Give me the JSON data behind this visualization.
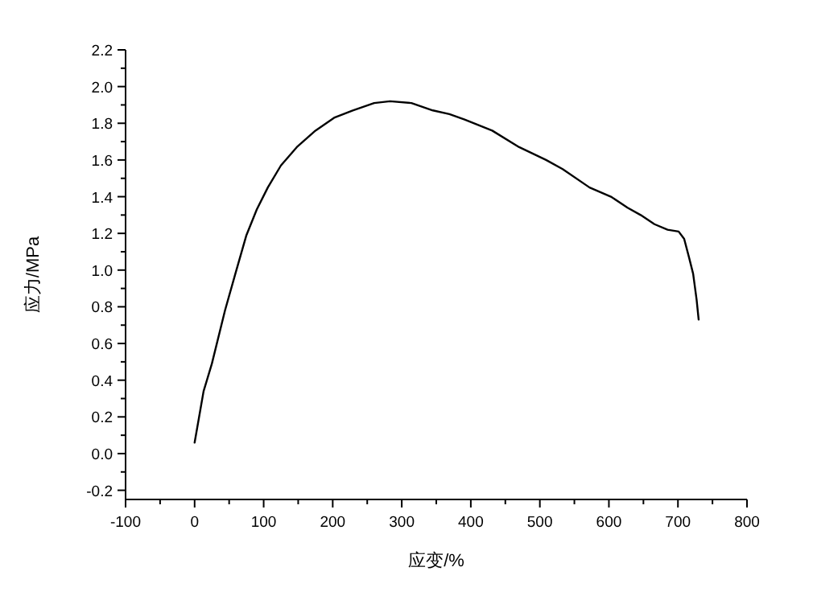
{
  "chart_data": {
    "type": "line",
    "xlabel": "应变/%",
    "ylabel": "应力/MPa",
    "xlim": [
      -100,
      800
    ],
    "ylim": [
      -0.25,
      2.2
    ],
    "xticks": [
      -100,
      {
        "value": -50,
        "label": null
      },
      0,
      {
        "value": 50,
        "label": null
      },
      100,
      {
        "value": 150,
        "label": null
      },
      200,
      {
        "value": 250,
        "label": null
      },
      300,
      {
        "value": 350,
        "label": null
      },
      400,
      {
        "value": 450,
        "label": null
      },
      500,
      {
        "value": 550,
        "label": null
      },
      600,
      {
        "value": 650,
        "label": null
      },
      700,
      {
        "value": 750,
        "label": null
      },
      800
    ],
    "yticks": [
      {
        "value": -0.2,
        "label": "-0.2"
      },
      {
        "value": -0.1,
        "label": null
      },
      {
        "value": 0,
        "label": "0.0"
      },
      {
        "value": 0.1,
        "label": null
      },
      {
        "value": 0.2,
        "label": "0.2"
      },
      {
        "value": 0.3,
        "label": null
      },
      {
        "value": 0.4,
        "label": "0.4"
      },
      {
        "value": 0.5,
        "label": null
      },
      {
        "value": 0.6,
        "label": "0.6"
      },
      {
        "value": 0.7,
        "label": null
      },
      {
        "value": 0.8,
        "label": "0.8"
      },
      {
        "value": 0.9,
        "label": null
      },
      {
        "value": 1,
        "label": "1.0"
      },
      {
        "value": 1.1,
        "label": null
      },
      {
        "value": 1.2,
        "label": "1.2"
      },
      {
        "value": 1.3,
        "label": null
      },
      {
        "value": 1.4,
        "label": "1.4"
      },
      {
        "value": 1.5,
        "label": null
      },
      {
        "value": 1.6,
        "label": "1.6"
      },
      {
        "value": 1.7,
        "label": null
      },
      {
        "value": 1.8,
        "label": "1.8"
      },
      {
        "value": 1.9,
        "label": null
      },
      {
        "value": 2,
        "label": "2.0"
      },
      {
        "value": 2.1,
        "label": null
      },
      {
        "value": 2.2,
        "label": "2.2"
      }
    ],
    "grid": false,
    "x": [
      0,
      13,
      25,
      44,
      59,
      75,
      90,
      106,
      125,
      148,
      175,
      202,
      229,
      260,
      283,
      314,
      345,
      369,
      391,
      431,
      470,
      509,
      533,
      572,
      603,
      627,
      646,
      666,
      685,
      701,
      709,
      716,
      722,
      727,
      730
    ],
    "series": [
      {
        "color": "#000000",
        "values": [
          0.06,
          0.34,
          0.49,
          0.78,
          0.98,
          1.19,
          1.33,
          1.45,
          1.57,
          1.67,
          1.76,
          1.83,
          1.87,
          1.91,
          1.92,
          1.91,
          1.87,
          1.85,
          1.82,
          1.76,
          1.67,
          1.6,
          1.55,
          1.45,
          1.4,
          1.34,
          1.3,
          1.25,
          1.22,
          1.21,
          1.17,
          1.07,
          0.98,
          0.84,
          0.73
        ]
      }
    ]
  }
}
